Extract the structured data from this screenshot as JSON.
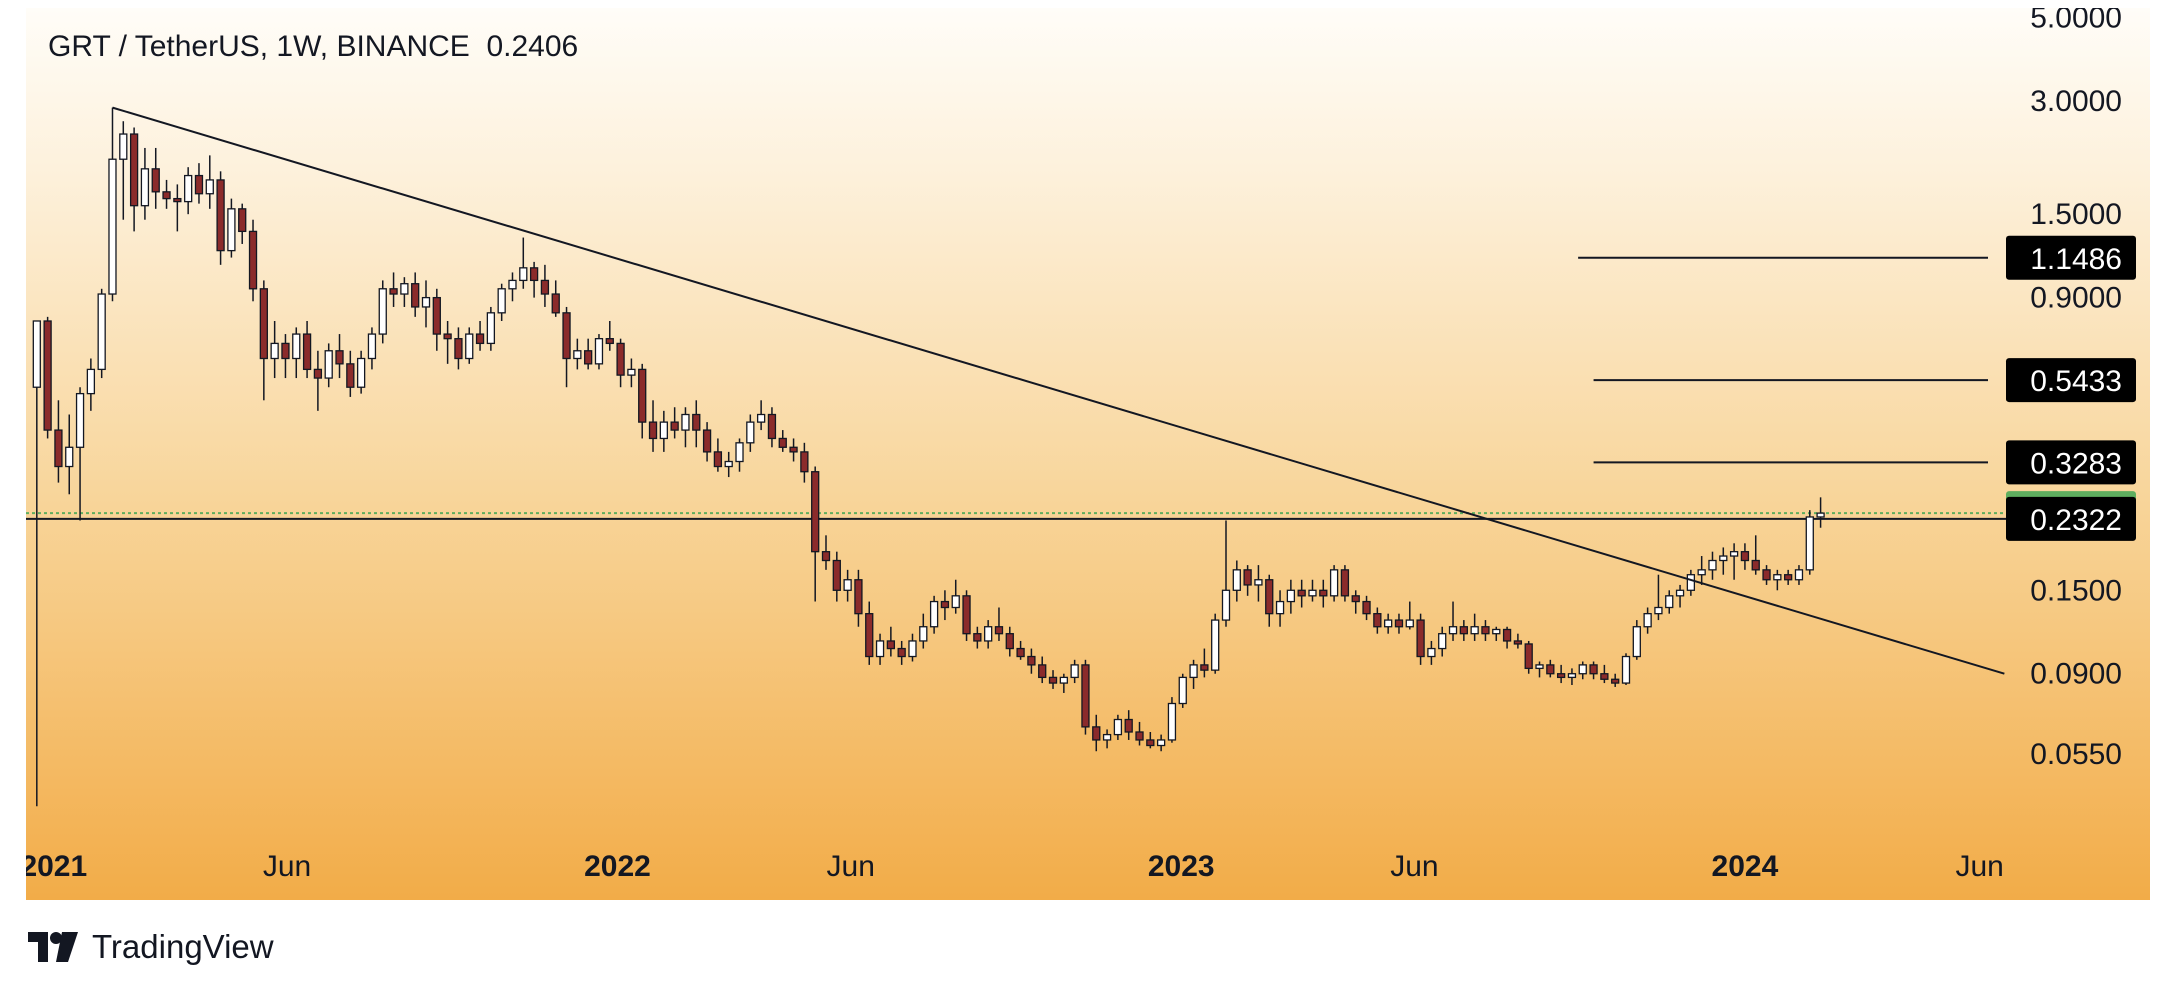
{
  "header": {
    "title": "GRT / TetherUS, 1W, BINANCE  0.2406"
  },
  "footer": {
    "brand": "TradingView"
  },
  "colors": {
    "up": "#ffffff",
    "down": "#8b2b2b",
    "wick": "#131722",
    "line": "#131722",
    "current_price_bg": "#5fae5f",
    "label_bg": "#000000"
  },
  "chart_data": {
    "type": "candlestick",
    "symbol": "GRT / TetherUS",
    "interval": "1W",
    "exchange": "BINANCE",
    "last_price": 0.2406,
    "y_scale": "log",
    "y_range": [
      0.035,
      5.3
    ],
    "x_range": [
      "2020-12-14",
      "2024-07-01"
    ],
    "y_ticks": [
      {
        "value": 5.0,
        "label": "5.0000"
      },
      {
        "value": 3.0,
        "label": "3.0000"
      },
      {
        "value": 1.5,
        "label": "1.5000"
      },
      {
        "value": 0.9,
        "label": "0.9000"
      },
      {
        "value": 0.15,
        "label": "0.1500"
      },
      {
        "value": 0.09,
        "label": "0.0900"
      },
      {
        "value": 0.055,
        "label": "0.0550"
      }
    ],
    "x_ticks": [
      {
        "date": "2021-01-01",
        "label": "2021",
        "bold": true
      },
      {
        "date": "2021-06-01",
        "label": "Jun",
        "bold": false
      },
      {
        "date": "2022-01-01",
        "label": "2022",
        "bold": true
      },
      {
        "date": "2022-06-01",
        "label": "Jun",
        "bold": false
      },
      {
        "date": "2023-01-01",
        "label": "2023",
        "bold": true
      },
      {
        "date": "2023-06-01",
        "label": "Jun",
        "bold": false
      },
      {
        "date": "2024-01-01",
        "label": "2024",
        "bold": true
      },
      {
        "date": "2024-06-01",
        "label": "Jun",
        "bold": false
      }
    ],
    "price_labels": [
      {
        "value": 1.1486,
        "label": "1.1486",
        "style": "black",
        "line_start": "2023-09-15"
      },
      {
        "value": 0.5433,
        "label": "0.5433",
        "style": "black",
        "line_start": "2023-09-25"
      },
      {
        "value": 0.3283,
        "label": "0.3283",
        "style": "black",
        "line_start": "2023-09-25"
      },
      {
        "value": 0.2406,
        "label": "0.2406",
        "style": "current",
        "line_start": "2020-12-14"
      },
      {
        "value": 0.2322,
        "label": "0.2322",
        "style": "black",
        "line_start": "2020-12-14"
      }
    ],
    "trendline": [
      {
        "date": "2021-02-08",
        "value": 2.88
      },
      {
        "date": "2024-06-17",
        "value": 0.09
      }
    ],
    "candles": [
      [
        "2020-12-21",
        0.52,
        0.78,
        0.04,
        0.78
      ],
      [
        "2020-12-28",
        0.78,
        0.8,
        0.38,
        0.4
      ],
      [
        "2021-01-04",
        0.4,
        0.48,
        0.29,
        0.32
      ],
      [
        "2021-01-11",
        0.32,
        0.44,
        0.27,
        0.36
      ],
      [
        "2021-01-18",
        0.36,
        0.52,
        0.23,
        0.5
      ],
      [
        "2021-01-25",
        0.5,
        0.62,
        0.45,
        0.58
      ],
      [
        "2021-02-01",
        0.58,
        0.95,
        0.55,
        0.92
      ],
      [
        "2021-02-08",
        0.92,
        2.88,
        0.88,
        2.1
      ],
      [
        "2021-02-15",
        2.1,
        2.65,
        1.45,
        2.45
      ],
      [
        "2021-02-22",
        2.45,
        2.55,
        1.35,
        1.58
      ],
      [
        "2021-03-01",
        1.58,
        2.25,
        1.45,
        1.98
      ],
      [
        "2021-03-08",
        1.98,
        2.25,
        1.55,
        1.72
      ],
      [
        "2021-03-15",
        1.72,
        1.85,
        1.55,
        1.65
      ],
      [
        "2021-03-22",
        1.65,
        1.8,
        1.35,
        1.62
      ],
      [
        "2021-03-29",
        1.62,
        2.0,
        1.5,
        1.9
      ],
      [
        "2021-04-05",
        1.9,
        2.05,
        1.6,
        1.7
      ],
      [
        "2021-04-12",
        1.7,
        2.15,
        1.55,
        1.85
      ],
      [
        "2021-04-19",
        1.85,
        1.95,
        1.1,
        1.2
      ],
      [
        "2021-04-26",
        1.2,
        1.65,
        1.15,
        1.55
      ],
      [
        "2021-05-03",
        1.55,
        1.6,
        1.25,
        1.35
      ],
      [
        "2021-05-10",
        1.35,
        1.45,
        0.88,
        0.95
      ],
      [
        "2021-05-17",
        0.95,
        1.0,
        0.48,
        0.62
      ],
      [
        "2021-05-24",
        0.62,
        0.78,
        0.55,
        0.68
      ],
      [
        "2021-05-31",
        0.68,
        0.72,
        0.55,
        0.62
      ],
      [
        "2021-06-07",
        0.62,
        0.75,
        0.55,
        0.72
      ],
      [
        "2021-06-14",
        0.72,
        0.78,
        0.55,
        0.58
      ],
      [
        "2021-06-21",
        0.58,
        0.65,
        0.45,
        0.55
      ],
      [
        "2021-06-28",
        0.55,
        0.68,
        0.52,
        0.65
      ],
      [
        "2021-07-05",
        0.65,
        0.72,
        0.55,
        0.6
      ],
      [
        "2021-07-12",
        0.6,
        0.65,
        0.49,
        0.52
      ],
      [
        "2021-07-19",
        0.52,
        0.65,
        0.5,
        0.62
      ],
      [
        "2021-07-26",
        0.62,
        0.75,
        0.58,
        0.72
      ],
      [
        "2021-08-02",
        0.72,
        1.0,
        0.68,
        0.95
      ],
      [
        "2021-08-09",
        0.95,
        1.05,
        0.85,
        0.92
      ],
      [
        "2021-08-16",
        0.92,
        1.02,
        0.85,
        0.98
      ],
      [
        "2021-08-23",
        0.98,
        1.05,
        0.8,
        0.85
      ],
      [
        "2021-08-30",
        0.85,
        1.0,
        0.75,
        0.9
      ],
      [
        "2021-09-06",
        0.9,
        0.95,
        0.65,
        0.72
      ],
      [
        "2021-09-13",
        0.72,
        0.78,
        0.6,
        0.7
      ],
      [
        "2021-09-20",
        0.7,
        0.75,
        0.58,
        0.62
      ],
      [
        "2021-09-27",
        0.62,
        0.75,
        0.6,
        0.72
      ],
      [
        "2021-10-04",
        0.72,
        0.78,
        0.65,
        0.68
      ],
      [
        "2021-10-11",
        0.68,
        0.85,
        0.65,
        0.82
      ],
      [
        "2021-10-18",
        0.82,
        0.98,
        0.78,
        0.95
      ],
      [
        "2021-10-25",
        0.95,
        1.05,
        0.88,
        1.0
      ],
      [
        "2021-11-01",
        1.0,
        1.3,
        0.95,
        1.08
      ],
      [
        "2021-11-08",
        1.08,
        1.12,
        0.9,
        1.0
      ],
      [
        "2021-11-15",
        1.0,
        1.1,
        0.85,
        0.92
      ],
      [
        "2021-11-22",
        0.92,
        1.0,
        0.8,
        0.82
      ],
      [
        "2021-11-29",
        0.82,
        0.85,
        0.52,
        0.62
      ],
      [
        "2021-12-06",
        0.62,
        0.7,
        0.58,
        0.65
      ],
      [
        "2021-12-13",
        0.65,
        0.7,
        0.58,
        0.6
      ],
      [
        "2021-12-20",
        0.6,
        0.72,
        0.58,
        0.7
      ],
      [
        "2021-12-27",
        0.7,
        0.78,
        0.65,
        0.68
      ],
      [
        "2022-01-03",
        0.68,
        0.7,
        0.52,
        0.56
      ],
      [
        "2022-01-10",
        0.56,
        0.62,
        0.52,
        0.58
      ],
      [
        "2022-01-17",
        0.58,
        0.6,
        0.38,
        0.42
      ],
      [
        "2022-01-24",
        0.42,
        0.48,
        0.35,
        0.38
      ],
      [
        "2022-01-31",
        0.38,
        0.45,
        0.35,
        0.42
      ],
      [
        "2022-02-07",
        0.42,
        0.46,
        0.38,
        0.4
      ],
      [
        "2022-02-14",
        0.4,
        0.46,
        0.36,
        0.44
      ],
      [
        "2022-02-21",
        0.44,
        0.48,
        0.36,
        0.4
      ],
      [
        "2022-02-28",
        0.4,
        0.42,
        0.33,
        0.35
      ],
      [
        "2022-03-07",
        0.35,
        0.38,
        0.31,
        0.32
      ],
      [
        "2022-03-14",
        0.32,
        0.35,
        0.3,
        0.33
      ],
      [
        "2022-03-21",
        0.33,
        0.38,
        0.31,
        0.37
      ],
      [
        "2022-03-28",
        0.37,
        0.44,
        0.35,
        0.42
      ],
      [
        "2022-04-04",
        0.42,
        0.48,
        0.4,
        0.44
      ],
      [
        "2022-04-11",
        0.44,
        0.46,
        0.36,
        0.38
      ],
      [
        "2022-04-18",
        0.38,
        0.4,
        0.35,
        0.36
      ],
      [
        "2022-04-25",
        0.36,
        0.38,
        0.33,
        0.35
      ],
      [
        "2022-05-02",
        0.35,
        0.37,
        0.29,
        0.31
      ],
      [
        "2022-05-09",
        0.31,
        0.32,
        0.14,
        0.19
      ],
      [
        "2022-05-16",
        0.19,
        0.21,
        0.17,
        0.18
      ],
      [
        "2022-05-23",
        0.18,
        0.19,
        0.14,
        0.15
      ],
      [
        "2022-05-30",
        0.15,
        0.17,
        0.14,
        0.16
      ],
      [
        "2022-06-06",
        0.16,
        0.17,
        0.12,
        0.13
      ],
      [
        "2022-06-13",
        0.13,
        0.14,
        0.095,
        0.1
      ],
      [
        "2022-06-20",
        0.1,
        0.115,
        0.095,
        0.11
      ],
      [
        "2022-06-27",
        0.11,
        0.12,
        0.1,
        0.105
      ],
      [
        "2022-07-04",
        0.105,
        0.11,
        0.095,
        0.1
      ],
      [
        "2022-07-11",
        0.1,
        0.115,
        0.097,
        0.11
      ],
      [
        "2022-07-18",
        0.11,
        0.13,
        0.105,
        0.12
      ],
      [
        "2022-07-25",
        0.12,
        0.145,
        0.115,
        0.14
      ],
      [
        "2022-08-01",
        0.14,
        0.15,
        0.125,
        0.135
      ],
      [
        "2022-08-08",
        0.135,
        0.16,
        0.13,
        0.145
      ],
      [
        "2022-08-15",
        0.145,
        0.15,
        0.11,
        0.115
      ],
      [
        "2022-08-22",
        0.115,
        0.12,
        0.105,
        0.11
      ],
      [
        "2022-08-29",
        0.11,
        0.125,
        0.105,
        0.12
      ],
      [
        "2022-09-05",
        0.12,
        0.135,
        0.11,
        0.115
      ],
      [
        "2022-09-12",
        0.115,
        0.12,
        0.1,
        0.105
      ],
      [
        "2022-09-19",
        0.105,
        0.11,
        0.098,
        0.1
      ],
      [
        "2022-09-26",
        0.1,
        0.105,
        0.09,
        0.095
      ],
      [
        "2022-10-03",
        0.095,
        0.1,
        0.085,
        0.088
      ],
      [
        "2022-10-10",
        0.088,
        0.092,
        0.082,
        0.085
      ],
      [
        "2022-10-17",
        0.085,
        0.09,
        0.08,
        0.088
      ],
      [
        "2022-10-24",
        0.088,
        0.098,
        0.085,
        0.095
      ],
      [
        "2022-10-31",
        0.095,
        0.098,
        0.062,
        0.065
      ],
      [
        "2022-11-07",
        0.065,
        0.07,
        0.056,
        0.06
      ],
      [
        "2022-11-14",
        0.06,
        0.064,
        0.057,
        0.062
      ],
      [
        "2022-11-21",
        0.062,
        0.07,
        0.06,
        0.068
      ],
      [
        "2022-11-28",
        0.068,
        0.072,
        0.06,
        0.063
      ],
      [
        "2022-12-05",
        0.063,
        0.067,
        0.058,
        0.06
      ],
      [
        "2022-12-12",
        0.06,
        0.063,
        0.057,
        0.058
      ],
      [
        "2022-12-19",
        0.058,
        0.062,
        0.056,
        0.06
      ],
      [
        "2022-12-26",
        0.06,
        0.078,
        0.059,
        0.075
      ],
      [
        "2023-01-02",
        0.075,
        0.09,
        0.073,
        0.088
      ],
      [
        "2023-01-09",
        0.088,
        0.098,
        0.082,
        0.095
      ],
      [
        "2023-01-16",
        0.095,
        0.105,
        0.088,
        0.092
      ],
      [
        "2023-01-23",
        0.092,
        0.13,
        0.09,
        0.125
      ],
      [
        "2023-01-30",
        0.125,
        0.23,
        0.12,
        0.15
      ],
      [
        "2023-02-06",
        0.15,
        0.18,
        0.14,
        0.17
      ],
      [
        "2023-02-13",
        0.17,
        0.175,
        0.145,
        0.155
      ],
      [
        "2023-02-20",
        0.155,
        0.175,
        0.14,
        0.16
      ],
      [
        "2023-02-27",
        0.16,
        0.165,
        0.12,
        0.13
      ],
      [
        "2023-03-06",
        0.13,
        0.15,
        0.12,
        0.14
      ],
      [
        "2023-03-13",
        0.14,
        0.16,
        0.13,
        0.15
      ],
      [
        "2023-03-20",
        0.15,
        0.16,
        0.135,
        0.145
      ],
      [
        "2023-03-27",
        0.145,
        0.16,
        0.14,
        0.15
      ],
      [
        "2023-04-03",
        0.15,
        0.16,
        0.135,
        0.145
      ],
      [
        "2023-04-10",
        0.145,
        0.175,
        0.14,
        0.17
      ],
      [
        "2023-04-17",
        0.17,
        0.175,
        0.14,
        0.145
      ],
      [
        "2023-04-24",
        0.145,
        0.15,
        0.13,
        0.14
      ],
      [
        "2023-05-01",
        0.14,
        0.145,
        0.125,
        0.13
      ],
      [
        "2023-05-08",
        0.13,
        0.135,
        0.115,
        0.12
      ],
      [
        "2023-05-15",
        0.12,
        0.13,
        0.115,
        0.125
      ],
      [
        "2023-05-22",
        0.125,
        0.13,
        0.115,
        0.12
      ],
      [
        "2023-05-29",
        0.12,
        0.14,
        0.118,
        0.125
      ],
      [
        "2023-06-05",
        0.125,
        0.13,
        0.095,
        0.1
      ],
      [
        "2023-06-12",
        0.1,
        0.11,
        0.095,
        0.105
      ],
      [
        "2023-06-19",
        0.105,
        0.12,
        0.1,
        0.115
      ],
      [
        "2023-06-26",
        0.115,
        0.14,
        0.11,
        0.12
      ],
      [
        "2023-07-03",
        0.12,
        0.125,
        0.11,
        0.115
      ],
      [
        "2023-07-10",
        0.115,
        0.13,
        0.11,
        0.12
      ],
      [
        "2023-07-17",
        0.12,
        0.125,
        0.11,
        0.115
      ],
      [
        "2023-07-24",
        0.115,
        0.12,
        0.11,
        0.118
      ],
      [
        "2023-07-31",
        0.118,
        0.12,
        0.105,
        0.11
      ],
      [
        "2023-08-07",
        0.11,
        0.115,
        0.105,
        0.108
      ],
      [
        "2023-08-14",
        0.108,
        0.11,
        0.09,
        0.093
      ],
      [
        "2023-08-21",
        0.093,
        0.097,
        0.088,
        0.095
      ],
      [
        "2023-08-28",
        0.095,
        0.098,
        0.088,
        0.09
      ],
      [
        "2023-09-04",
        0.09,
        0.095,
        0.085,
        0.088
      ],
      [
        "2023-09-11",
        0.088,
        0.093,
        0.084,
        0.09
      ],
      [
        "2023-09-18",
        0.09,
        0.097,
        0.087,
        0.095
      ],
      [
        "2023-09-25",
        0.095,
        0.097,
        0.087,
        0.09
      ],
      [
        "2023-10-02",
        0.09,
        0.095,
        0.085,
        0.087
      ],
      [
        "2023-10-09",
        0.087,
        0.09,
        0.083,
        0.085
      ],
      [
        "2023-10-16",
        0.085,
        0.102,
        0.084,
        0.1
      ],
      [
        "2023-10-23",
        0.1,
        0.125,
        0.098,
        0.12
      ],
      [
        "2023-10-30",
        0.12,
        0.135,
        0.115,
        0.13
      ],
      [
        "2023-11-06",
        0.13,
        0.165,
        0.125,
        0.135
      ],
      [
        "2023-11-13",
        0.135,
        0.15,
        0.13,
        0.145
      ],
      [
        "2023-11-20",
        0.145,
        0.155,
        0.135,
        0.15
      ],
      [
        "2023-11-27",
        0.15,
        0.17,
        0.145,
        0.165
      ],
      [
        "2023-12-04",
        0.165,
        0.185,
        0.155,
        0.17
      ],
      [
        "2023-12-11",
        0.17,
        0.19,
        0.16,
        0.18
      ],
      [
        "2023-12-18",
        0.18,
        0.195,
        0.165,
        0.185
      ],
      [
        "2023-12-25",
        0.185,
        0.2,
        0.16,
        0.19
      ],
      [
        "2024-01-01",
        0.19,
        0.2,
        0.17,
        0.18
      ],
      [
        "2024-01-08",
        0.18,
        0.21,
        0.165,
        0.17
      ],
      [
        "2024-01-15",
        0.17,
        0.175,
        0.155,
        0.16
      ],
      [
        "2024-01-22",
        0.16,
        0.17,
        0.15,
        0.165
      ],
      [
        "2024-01-29",
        0.165,
        0.17,
        0.155,
        0.16
      ],
      [
        "2024-02-05",
        0.16,
        0.175,
        0.155,
        0.17
      ],
      [
        "2024-02-12",
        0.17,
        0.245,
        0.165,
        0.235
      ],
      [
        "2024-02-19",
        0.235,
        0.265,
        0.22,
        0.2406
      ]
    ]
  }
}
